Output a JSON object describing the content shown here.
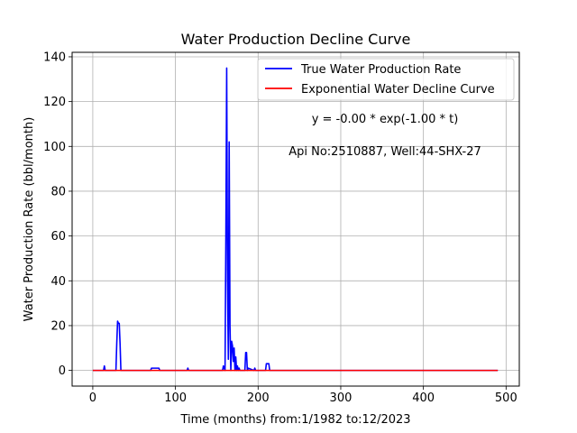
{
  "chart_data": {
    "type": "line",
    "title": "Water Production Decline Curve",
    "xlabel": "Time (months) from:1/1982 to:12/2023",
    "ylabel": "Water Production Rate (bbl/month)",
    "xlim": [
      -25,
      516
    ],
    "ylim": [
      -7,
      142
    ],
    "xticks": [
      0,
      100,
      200,
      300,
      400,
      500
    ],
    "yticks": [
      0,
      20,
      40,
      60,
      80,
      100,
      120,
      140
    ],
    "grid": true,
    "legend_position": "top-right",
    "annotations": [
      "y = -0.00 * exp(-1.00 * t)",
      "Api No:2510887, Well:44-SHX-27"
    ],
    "series": [
      {
        "name": "True Water Production Rate",
        "color": "#0000ff",
        "x": [
          0,
          13,
          14,
          15,
          28,
          29,
          30,
          31,
          32,
          33,
          34,
          70,
          71,
          80,
          81,
          114,
          115,
          116,
          157,
          158,
          159,
          160,
          161,
          162,
          163,
          164,
          165,
          166,
          167,
          168,
          169,
          170,
          171,
          172,
          173,
          174,
          175,
          176,
          177,
          178,
          184,
          185,
          186,
          187,
          188,
          195,
          196,
          197,
          209,
          210,
          211,
          212,
          213,
          214,
          490
        ],
        "y": [
          0,
          0,
          2,
          0,
          0,
          12,
          22,
          21,
          21,
          12,
          0,
          0,
          1,
          1,
          0,
          0,
          1,
          0,
          0,
          2,
          1,
          0,
          60,
          135,
          40,
          5,
          102,
          20,
          0,
          13,
          11,
          4,
          10,
          0,
          6,
          0,
          2,
          0,
          1,
          0,
          0,
          8,
          8,
          0,
          1,
          0,
          1,
          0,
          0,
          3,
          3,
          3,
          3,
          0,
          0
        ]
      },
      {
        "name": "Exponential Water Decline Curve",
        "color": "#ff0000",
        "x": [
          0,
          490
        ],
        "y": [
          0,
          0
        ]
      }
    ]
  }
}
